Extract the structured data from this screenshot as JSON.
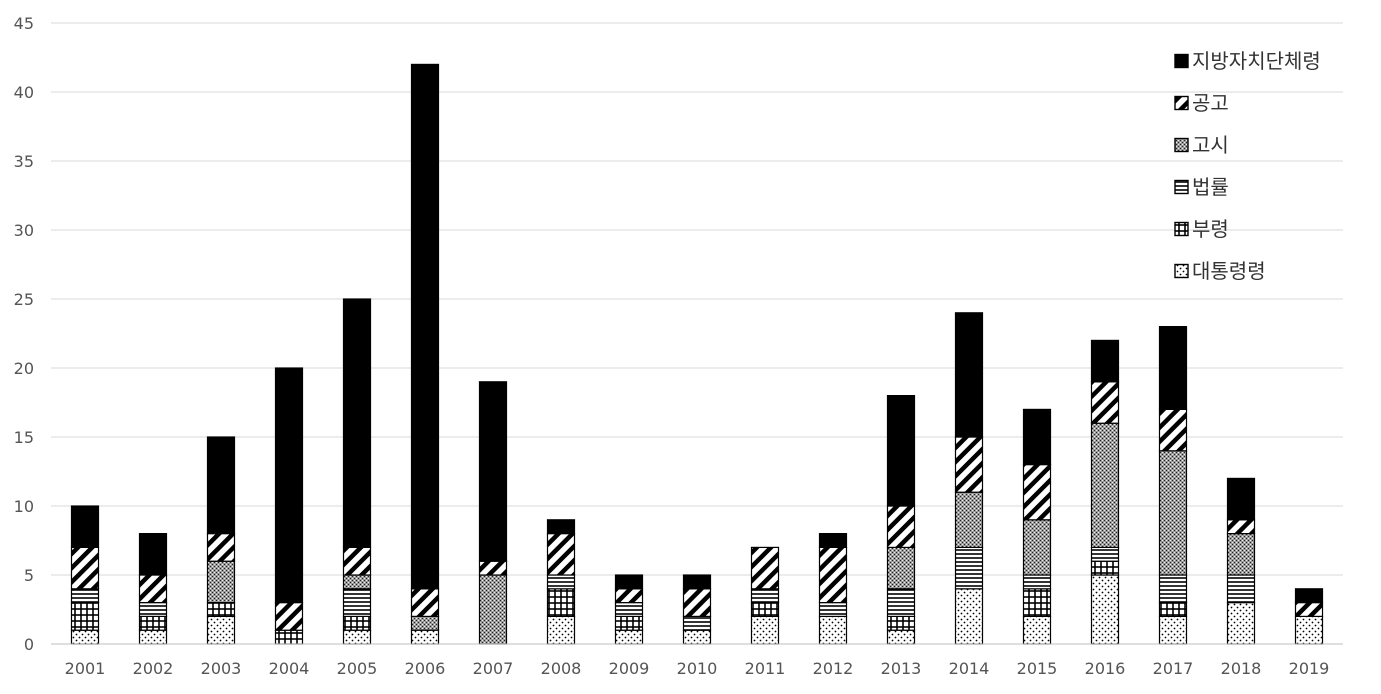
{
  "chart_data": {
    "type": "bar",
    "stacked": true,
    "categories": [
      "2001",
      "2002",
      "2003",
      "2004",
      "2005",
      "2006",
      "2007",
      "2008",
      "2009",
      "2010",
      "2011",
      "2012",
      "2013",
      "2014",
      "2015",
      "2016",
      "2017",
      "2018",
      "2019"
    ],
    "series": [
      {
        "name": "대통령령",
        "pattern": "dots",
        "values": [
          1,
          1,
          2,
          0,
          1,
          1,
          0,
          2,
          1,
          1,
          2,
          2,
          1,
          4,
          2,
          5,
          2,
          3,
          2
        ]
      },
      {
        "name": "부령",
        "pattern": "grid",
        "values": [
          2,
          1,
          1,
          1,
          1,
          0,
          0,
          2,
          1,
          0,
          1,
          0,
          1,
          0,
          2,
          1,
          1,
          0,
          0
        ]
      },
      {
        "name": "법률",
        "pattern": "hlines",
        "values": [
          1,
          1,
          0,
          0,
          2,
          0,
          0,
          1,
          1,
          1,
          1,
          1,
          2,
          3,
          1,
          1,
          2,
          2,
          0
        ]
      },
      {
        "name": "고시",
        "pattern": "crosshatch",
        "values": [
          0,
          0,
          3,
          0,
          1,
          1,
          5,
          0,
          0,
          0,
          0,
          0,
          3,
          4,
          4,
          9,
          9,
          3,
          0
        ]
      },
      {
        "name": "공고",
        "pattern": "diagonal",
        "values": [
          3,
          2,
          2,
          2,
          2,
          2,
          1,
          3,
          1,
          2,
          3,
          4,
          3,
          4,
          4,
          3,
          3,
          1,
          1
        ]
      },
      {
        "name": "지방자치단체령",
        "pattern": "solid",
        "values": [
          3,
          3,
          7,
          17,
          18,
          38,
          13,
          1,
          1,
          1,
          0,
          1,
          8,
          9,
          4,
          3,
          6,
          3,
          1
        ]
      }
    ],
    "yticks": [
      "0",
      "5",
      "10",
      "15",
      "20",
      "25",
      "30",
      "35",
      "40",
      "45"
    ],
    "ylim": [
      0,
      45
    ],
    "grid": true,
    "legend_position": "top-right",
    "legend_order": [
      "지방자치단체령",
      "공고",
      "고시",
      "법률",
      "부령",
      "대통령령"
    ]
  }
}
